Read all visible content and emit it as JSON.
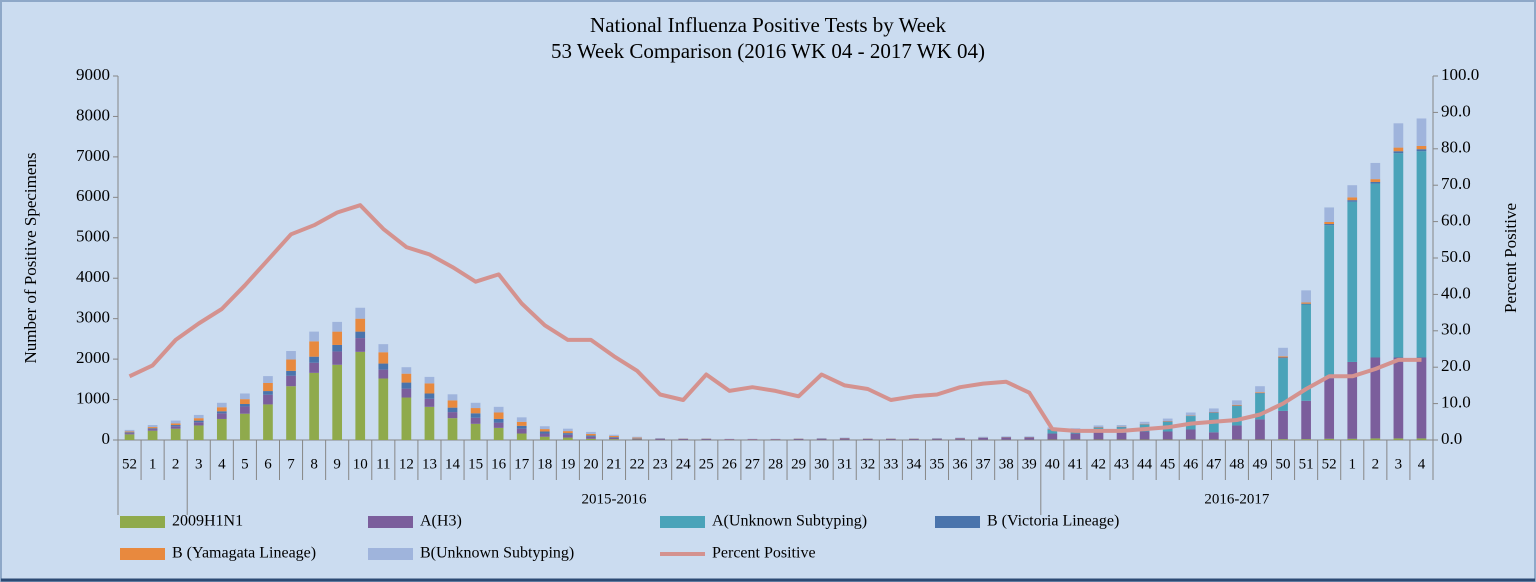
{
  "chart_data": {
    "type": "bar",
    "stacked": true,
    "title": "National Influenza Positive Tests by Week",
    "subtitle": "53 Week Comparison (2016 WK 04 - 2017 WK 04)",
    "y_label": "Number of Positive Specimens",
    "y2_label": "Percent Positive",
    "categories": [
      "52",
      "1",
      "2",
      "3",
      "4",
      "5",
      "6",
      "7",
      "8",
      "9",
      "10",
      "11",
      "12",
      "13",
      "14",
      "15",
      "16",
      "17",
      "18",
      "19",
      "20",
      "21",
      "22",
      "23",
      "24",
      "25",
      "26",
      "27",
      "28",
      "29",
      "30",
      "31",
      "32",
      "33",
      "34",
      "35",
      "36",
      "37",
      "38",
      "39",
      "40",
      "41",
      "42",
      "43",
      "44",
      "45",
      "46",
      "47",
      "48",
      "49",
      "50",
      "51",
      "52",
      "1",
      "2",
      "3",
      "4"
    ],
    "category_groups": [
      null,
      null,
      null,
      "2015-2016",
      "2015-2016",
      "2015-2016",
      "2015-2016",
      "2015-2016",
      "2015-2016",
      "2015-2016",
      "2015-2016",
      "2015-2016",
      "2015-2016",
      "2015-2016",
      "2015-2016",
      "2015-2016",
      "2015-2016",
      "2015-2016",
      "2015-2016",
      "2015-2016",
      "2015-2016",
      "2015-2016",
      "2015-2016",
      "2015-2016",
      "2015-2016",
      "2015-2016",
      "2015-2016",
      "2015-2016",
      "2015-2016",
      "2015-2016",
      "2015-2016",
      "2015-2016",
      "2015-2016",
      "2015-2016",
      "2015-2016",
      "2015-2016",
      "2015-2016",
      "2015-2016",
      "2015-2016",
      "2015-2016",
      "2016-2017",
      "2016-2017",
      "2016-2017",
      "2016-2017",
      "2016-2017",
      "2016-2017",
      "2016-2017",
      "2016-2017",
      "2016-2017",
      "2016-2017",
      "2016-2017",
      "2016-2017",
      "2016-2017",
      "2016-2017",
      "2016-2017",
      "2016-2017",
      "2016-2017"
    ],
    "ylim": [
      0,
      9000
    ],
    "yticks": [
      0,
      1000,
      2000,
      3000,
      4000,
      5000,
      6000,
      7000,
      8000,
      9000
    ],
    "y2lim": [
      0,
      100
    ],
    "y2ticks": [
      {
        "value": 0,
        "label": "0.0"
      },
      {
        "value": 10,
        "label": "10.0"
      },
      {
        "value": 20,
        "label": "20.0"
      },
      {
        "value": 30,
        "label": "30.0"
      },
      {
        "value": 40,
        "label": "40.0"
      },
      {
        "value": 50,
        "label": "50.0"
      },
      {
        "value": 60,
        "label": "60.0"
      },
      {
        "value": 70,
        "label": "70.0"
      },
      {
        "value": 80,
        "label": "80.0"
      },
      {
        "value": 90,
        "label": "90.0"
      },
      {
        "value": 100,
        "label": "100.0"
      }
    ],
    "grid": false,
    "legend": "bottom",
    "series": [
      {
        "name": "2009H1N1",
        "color": "#8faa4c",
        "values": [
          140,
          230,
          280,
          360,
          520,
          650,
          880,
          1330,
          1660,
          1860,
          2180,
          1520,
          1050,
          820,
          540,
          400,
          300,
          160,
          80,
          60,
          30,
          20,
          10,
          5,
          5,
          5,
          0,
          0,
          0,
          5,
          5,
          5,
          5,
          5,
          5,
          5,
          5,
          5,
          5,
          5,
          10,
          10,
          10,
          10,
          10,
          10,
          10,
          10,
          10,
          10,
          20,
          20,
          30,
          30,
          40,
          40,
          40
        ]
      },
      {
        "name": "A(H3)",
        "color": "#7b5e9c",
        "values": [
          30,
          40,
          60,
          80,
          140,
          180,
          240,
          260,
          250,
          330,
          340,
          220,
          220,
          200,
          150,
          150,
          130,
          120,
          80,
          70,
          50,
          30,
          20,
          25,
          20,
          20,
          15,
          15,
          15,
          20,
          25,
          35,
          20,
          20,
          20,
          25,
          35,
          50,
          60,
          60,
          150,
          150,
          180,
          170,
          200,
          200,
          250,
          180,
          350,
          500,
          700,
          950,
          1500,
          1900,
          2000,
          2000,
          2000
        ]
      },
      {
        "name": "A(Unknown Subtyping)",
        "color": "#4aa3b9",
        "values": [
          0,
          0,
          0,
          0,
          0,
          0,
          0,
          0,
          0,
          0,
          0,
          0,
          0,
          0,
          0,
          0,
          0,
          0,
          0,
          0,
          0,
          0,
          0,
          0,
          0,
          0,
          0,
          0,
          0,
          0,
          0,
          0,
          0,
          0,
          0,
          0,
          0,
          0,
          0,
          0,
          90,
          80,
          110,
          130,
          170,
          240,
          330,
          480,
          480,
          640,
          1300,
          2380,
          3780,
          3960,
          4300,
          5050,
          5100
        ]
      },
      {
        "name": "B (Victoria Lineage)",
        "color": "#4a74ac",
        "values": [
          20,
          20,
          30,
          40,
          50,
          60,
          90,
          120,
          150,
          160,
          160,
          150,
          150,
          130,
          110,
          110,
          90,
          70,
          50,
          40,
          30,
          20,
          10,
          5,
          5,
          5,
          5,
          5,
          5,
          5,
          5,
          5,
          5,
          5,
          5,
          5,
          5,
          5,
          5,
          5,
          10,
          10,
          10,
          10,
          10,
          10,
          10,
          10,
          10,
          10,
          20,
          20,
          30,
          40,
          40,
          50,
          50
        ]
      },
      {
        "name": "B (Yamagata Lineage)",
        "color": "#e8893e",
        "values": [
          20,
          30,
          40,
          60,
          100,
          120,
          200,
          280,
          380,
          330,
          320,
          280,
          220,
          250,
          180,
          130,
          160,
          100,
          60,
          50,
          40,
          30,
          20,
          5,
          5,
          5,
          5,
          5,
          5,
          5,
          5,
          5,
          5,
          5,
          5,
          5,
          5,
          5,
          5,
          5,
          10,
          10,
          10,
          10,
          10,
          10,
          10,
          10,
          20,
          20,
          30,
          30,
          50,
          70,
          70,
          90,
          80
        ]
      },
      {
        "name": "B(Unknown Subtyping)",
        "color": "#9fb4dc",
        "values": [
          40,
          50,
          70,
          80,
          110,
          140,
          170,
          210,
          240,
          240,
          270,
          200,
          160,
          160,
          150,
          130,
          140,
          110,
          70,
          60,
          50,
          30,
          20,
          10,
          5,
          5,
          5,
          5,
          5,
          5,
          10,
          10,
          5,
          5,
          5,
          10,
          10,
          15,
          15,
          15,
          40,
          30,
          40,
          40,
          50,
          60,
          70,
          90,
          110,
          150,
          210,
          300,
          360,
          300,
          400,
          600,
          680
        ]
      },
      {
        "name": "Percent Positive",
        "color": "#d4928f",
        "type": "line",
        "axis": "y2",
        "values": [
          17.5,
          20.5,
          27.5,
          32,
          36,
          42.5,
          49.5,
          56.5,
          59,
          62.5,
          64.5,
          58,
          53,
          51,
          47.5,
          43.5,
          45.5,
          37.5,
          31.5,
          27.5,
          27.5,
          23,
          19,
          12.5,
          11,
          18,
          13.5,
          14.5,
          13.5,
          12,
          18,
          15,
          14,
          11,
          12,
          12.5,
          14.5,
          15.5,
          16,
          13,
          3,
          2.5,
          2.5,
          2.5,
          3,
          3.5,
          4.5,
          5,
          5.5,
          7,
          10,
          14,
          17.5,
          17.5,
          19.5,
          22,
          22
        ]
      }
    ]
  }
}
